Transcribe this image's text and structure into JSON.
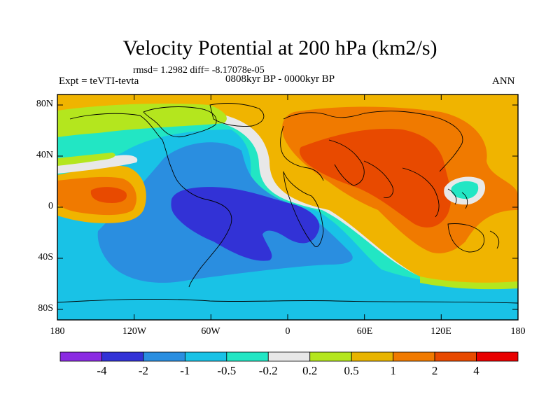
{
  "title": "Velocity Potential at 200 hPa (km2/s)",
  "stats": "rmsd= 1.2982 diff= -8.17078e-05",
  "experiment": "Expt = teVTI-tevta",
  "period": "0808kyr BP - 0000kyr BP",
  "season": "ANN",
  "y_ticks": [
    "80N",
    "40N",
    "0",
    "40S",
    "80S"
  ],
  "x_ticks": [
    "180",
    "120W",
    "60W",
    "0",
    "60E",
    "120E",
    "180"
  ],
  "colorbar": {
    "labels": [
      "-4",
      "-2",
      "-1",
      "-0.5",
      "-0.2",
      "0.2",
      "0.5",
      "1",
      "2",
      "4"
    ],
    "colors": [
      "#8a2be2",
      "#3232d6",
      "#2a8ee0",
      "#19c2e6",
      "#22e6c4",
      "#e8e8e8",
      "#b4e61e",
      "#e8b400",
      "#f07a00",
      "#e84a00",
      "#e80000"
    ]
  }
}
